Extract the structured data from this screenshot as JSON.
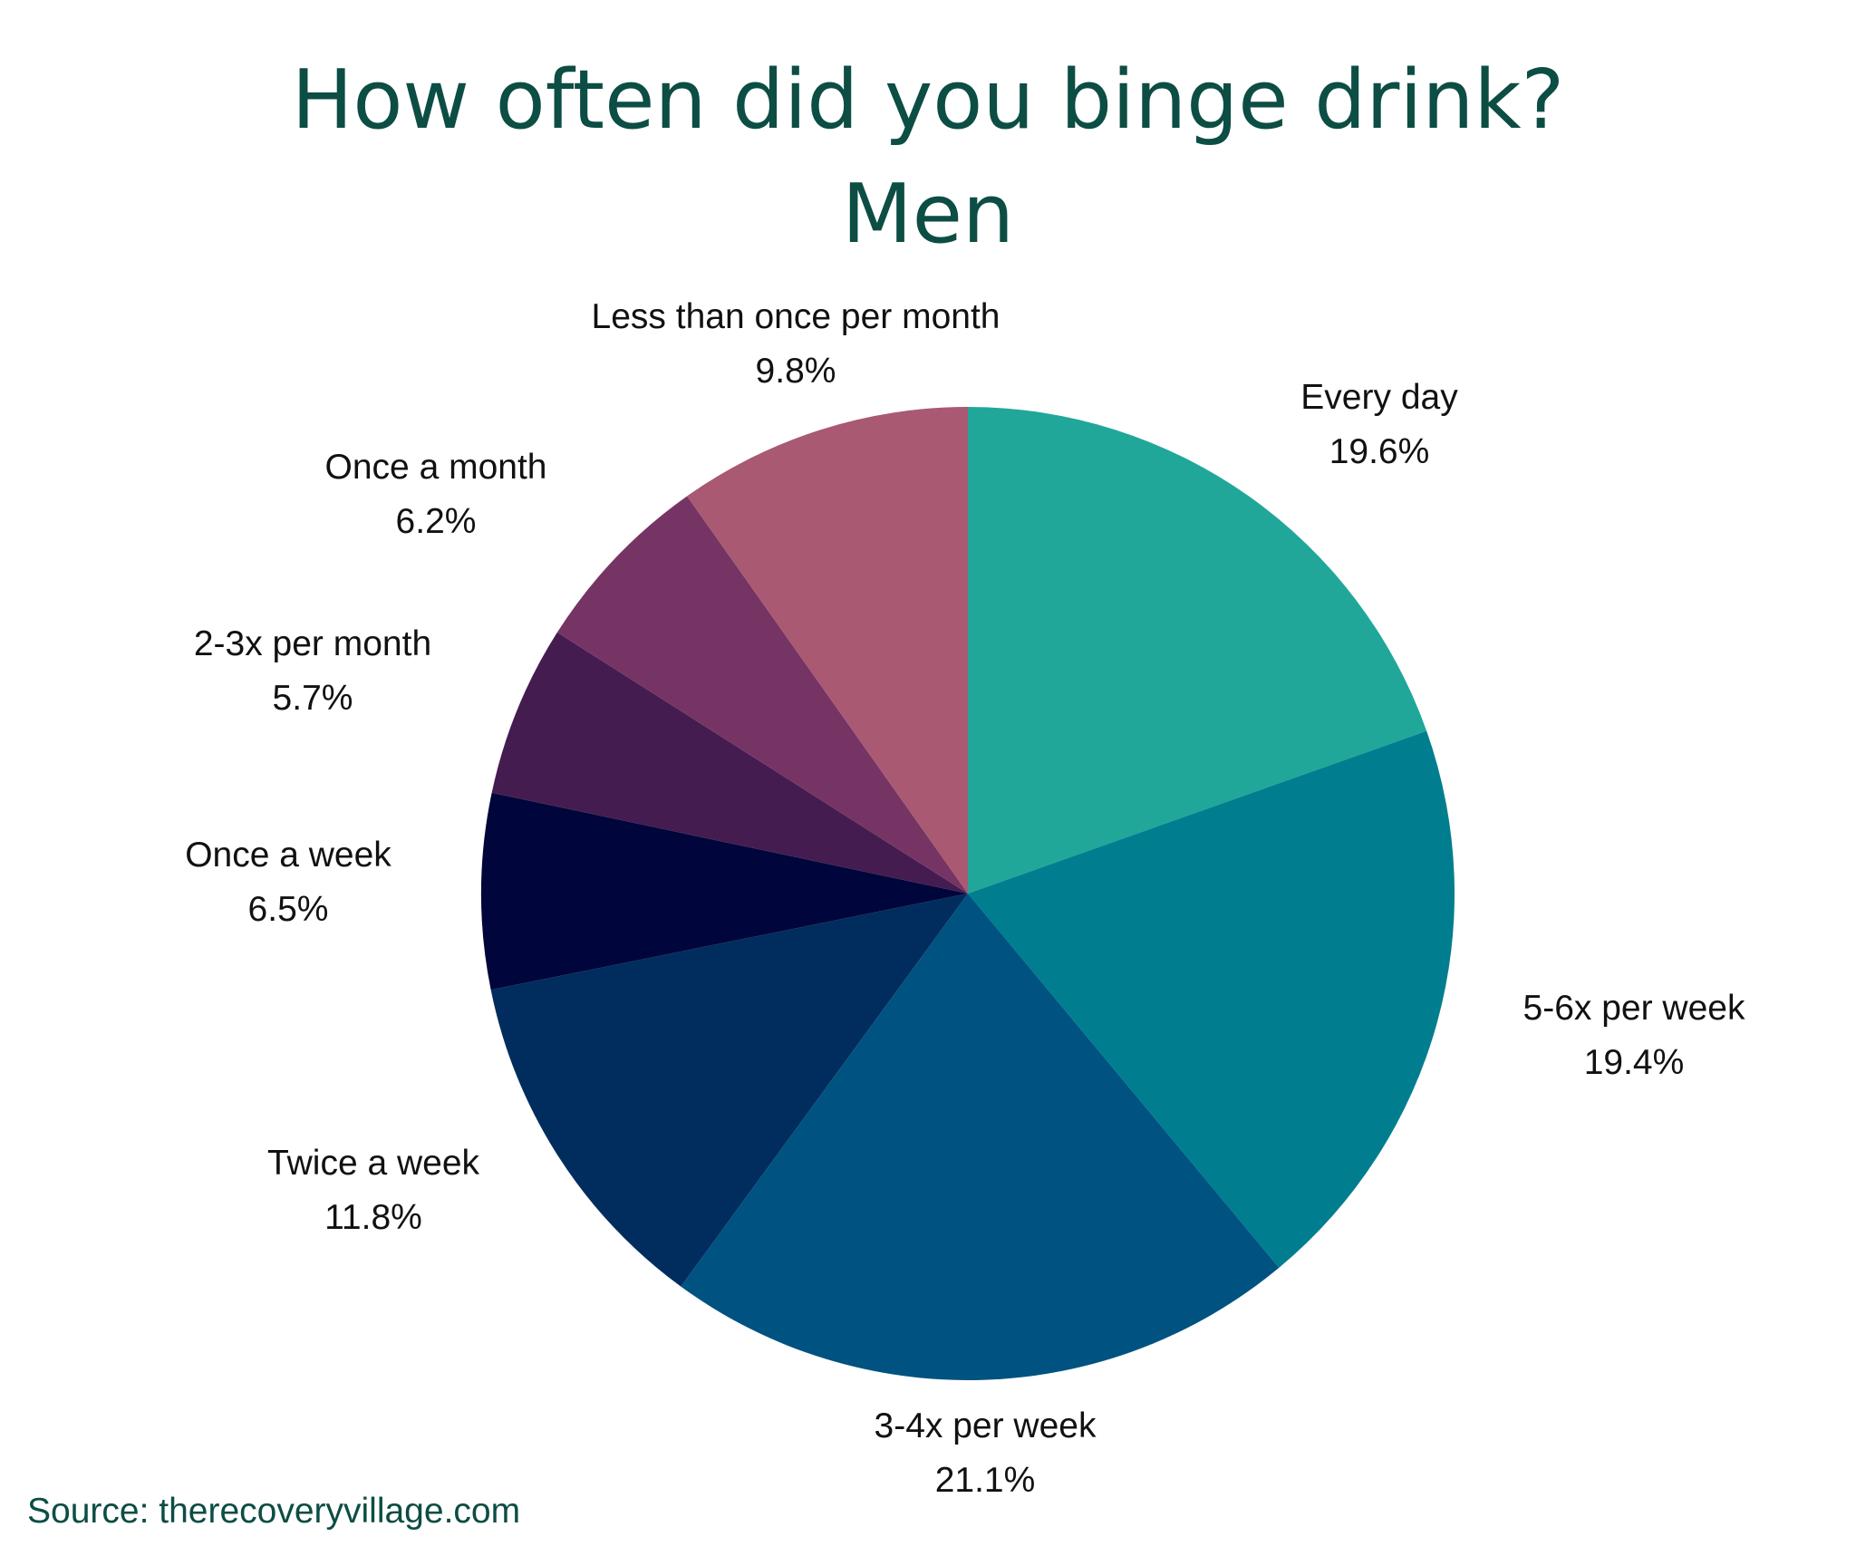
{
  "chart_data": {
    "type": "pie",
    "title": "How often did you binge drink?",
    "subtitle": "Men",
    "start": "12 o'clock",
    "direction": "clockwise",
    "slices": [
      {
        "label": "Every day",
        "value": 19.6,
        "value_label": "19.6%",
        "color": "#21a79a"
      },
      {
        "label": "5-6x per week",
        "value": 19.4,
        "value_label": "19.4%",
        "color": "#007e8f"
      },
      {
        "label": "3-4x per week",
        "value": 21.1,
        "value_label": "21.1%",
        "color": "#005380"
      },
      {
        "label": "Twice a week",
        "value": 11.8,
        "value_label": "11.8%",
        "color": "#002d5e"
      },
      {
        "label": "Once a week",
        "value": 6.5,
        "value_label": "6.5%",
        "color": "#00063b"
      },
      {
        "label": "2-3x per month",
        "value": 5.7,
        "value_label": "5.7%",
        "color": "#441c50"
      },
      {
        "label": "Once a month",
        "value": 6.2,
        "value_label": "6.2%",
        "color": "#763464"
      },
      {
        "label": "Less than once per month",
        "value": 9.8,
        "value_label": "9.8%",
        "color": "#a95972"
      }
    ]
  },
  "source": "Source: therecoveryvillage.com"
}
